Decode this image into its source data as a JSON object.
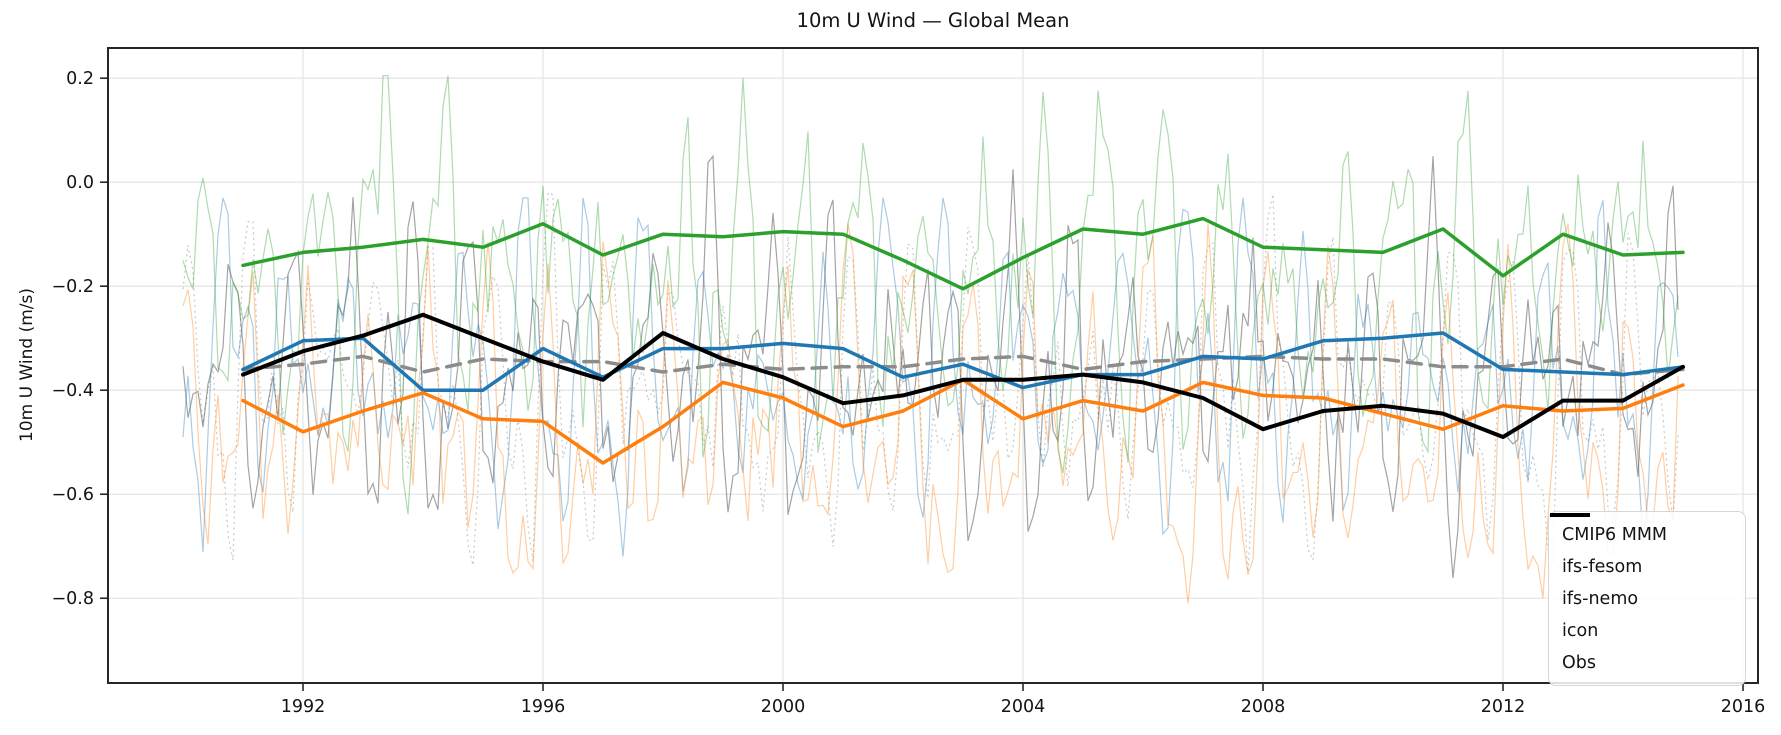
{
  "title": "10m U Wind — Global Mean",
  "ylabel": "10m U Wind (m/s)",
  "axes": {
    "x_tick_labels": [
      "1992",
      "1996",
      "2000",
      "2004",
      "2008",
      "2012",
      "2016"
    ],
    "y_tick_labels": [
      "0.2",
      "0.0",
      "−0.2",
      "−0.4",
      "−0.6",
      "−0.8"
    ]
  },
  "legend": {
    "entries": [
      "CMIP6 MMM",
      "ifs-fesom",
      "ifs-nemo",
      "icon",
      "Obs"
    ]
  },
  "colors": {
    "blue": "#1f77b4",
    "orange": "#ff7f0e",
    "green": "#2ca02c",
    "black": "#000000",
    "gray_dashed": "#8c8c8c",
    "grid": "#e6e6e6",
    "spine": "#262626"
  },
  "chart_data": {
    "type": "line",
    "title": "10m U Wind — Global Mean",
    "xlabel": "",
    "ylabel": "10m U Wind (m/s)",
    "xlim": [
      1988.75,
      2016.25
    ],
    "ylim": [
      -0.963,
      0.258
    ],
    "x_ticks": [
      1992,
      1996,
      2000,
      2004,
      2008,
      2012,
      2016
    ],
    "y_ticks": [
      0.2,
      0.0,
      -0.2,
      -0.4,
      -0.6,
      -0.8
    ],
    "grid": true,
    "legend_position": "lower right",
    "x": [
      1991,
      1992,
      1993,
      1994,
      1995,
      1996,
      1997,
      1998,
      1999,
      2000,
      2001,
      2002,
      2003,
      2004,
      2005,
      2006,
      2007,
      2008,
      2009,
      2010,
      2011,
      2012,
      2013,
      2014,
      2015
    ],
    "series": [
      {
        "name": "CMIP6 MMM",
        "color": "#8c8c8c",
        "style": "dashed",
        "width": 3.5,
        "values": [
          -0.36,
          -0.35,
          -0.335,
          -0.365,
          -0.34,
          -0.345,
          -0.345,
          -0.365,
          -0.35,
          -0.36,
          -0.355,
          -0.355,
          -0.34,
          -0.335,
          -0.36,
          -0.345,
          -0.34,
          -0.335,
          -0.34,
          -0.34,
          -0.355,
          -0.355,
          -0.34,
          -0.37,
          -0.36
        ]
      },
      {
        "name": "ifs-fesom",
        "color": "#1f77b4",
        "style": "solid",
        "width": 3.5,
        "values": [
          -0.36,
          -0.305,
          -0.3,
          -0.4,
          -0.4,
          -0.32,
          -0.375,
          -0.32,
          -0.32,
          -0.31,
          -0.32,
          -0.375,
          -0.35,
          -0.395,
          -0.37,
          -0.37,
          -0.335,
          -0.34,
          -0.305,
          -0.3,
          -0.29,
          -0.36,
          -0.365,
          -0.37,
          -0.355
        ]
      },
      {
        "name": "ifs-nemo",
        "color": "#ff7f0e",
        "style": "solid",
        "width": 3.5,
        "values": [
          -0.42,
          -0.48,
          -0.44,
          -0.405,
          -0.455,
          -0.46,
          -0.54,
          -0.47,
          -0.385,
          -0.415,
          -0.47,
          -0.44,
          -0.38,
          -0.455,
          -0.42,
          -0.44,
          -0.385,
          -0.41,
          -0.415,
          -0.445,
          -0.475,
          -0.43,
          -0.44,
          -0.435,
          -0.39
        ]
      },
      {
        "name": "icon",
        "color": "#2ca02c",
        "style": "solid",
        "width": 3.5,
        "values": [
          -0.16,
          -0.135,
          -0.125,
          -0.11,
          -0.125,
          -0.08,
          -0.14,
          -0.1,
          -0.105,
          -0.095,
          -0.1,
          -0.15,
          -0.205,
          -0.145,
          -0.09,
          -0.1,
          -0.07,
          -0.125,
          -0.13,
          -0.135,
          -0.09,
          -0.18,
          -0.1,
          -0.14,
          -0.135
        ]
      },
      {
        "name": "Obs",
        "color": "#000000",
        "style": "solid",
        "width": 4,
        "values": [
          -0.37,
          -0.325,
          -0.295,
          -0.255,
          -0.3,
          -0.345,
          -0.38,
          -0.29,
          -0.34,
          -0.375,
          -0.425,
          -0.41,
          -0.38,
          -0.38,
          -0.37,
          -0.385,
          -0.415,
          -0.475,
          -0.44,
          -0.43,
          -0.445,
          -0.49,
          -0.42,
          -0.42,
          -0.355
        ]
      }
    ],
    "background_monthly": {
      "note": "faint jagged monthly traces behind the annual means, spanning 1990-2015",
      "x_start": 1990.0,
      "x_end": 2014.95,
      "per_year": 12,
      "series": [
        {
          "name": "CMIP6 monthly",
          "color": "#b5b5b5",
          "style": "dotted",
          "mean": -0.4,
          "range": [
            -0.78,
            -0.02
          ],
          "seed": 23
        },
        {
          "name": "Obs monthly",
          "color": "#5a5a5a",
          "style": "solid",
          "mean": -0.36,
          "range": [
            -0.8,
            0.05
          ],
          "seed": 11
        },
        {
          "name": "ifs-fesom monthly",
          "color": "#1f77b4",
          "style": "solid",
          "mean": -0.36,
          "range": [
            -0.8,
            -0.03
          ],
          "seed": 37
        },
        {
          "name": "ifs-nemo monthly",
          "color": "#ff7f0e",
          "style": "solid",
          "mean": -0.46,
          "range": [
            -0.92,
            -0.08
          ],
          "seed": 51
        },
        {
          "name": "icon monthly",
          "color": "#2ca02c",
          "style": "solid",
          "mean": -0.19,
          "range": [
            -0.7,
            0.205
          ],
          "seed": 67
        }
      ]
    }
  }
}
